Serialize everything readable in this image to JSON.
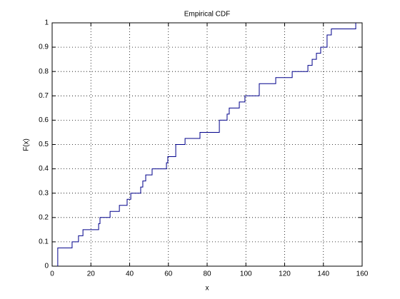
{
  "chart_data": {
    "type": "step",
    "title": "Empirical CDF",
    "x_label": "x",
    "y_label": "F(x)",
    "series": [
      {
        "color": "#00008b",
        "x": [
          2.9,
          2.9,
          10.3,
          13.6,
          15.9,
          24,
          24.7,
          29.9,
          34.7,
          38.7,
          40.6,
          45.7,
          46.8,
          48.3,
          51.6,
          59,
          59.7,
          63.8,
          68.6,
          76.3,
          86.3,
          90.3,
          91.4,
          96.6,
          99.5,
          106.9,
          115.4,
          123.9,
          132,
          134.2,
          136.4,
          138.6,
          141.9,
          144.1,
          156.7
        ],
        "values": [
          0,
          0.075,
          0.1,
          0.125,
          0.15,
          0.175,
          0.2,
          0.225,
          0.25,
          0.275,
          0.3,
          0.325,
          0.35,
          0.375,
          0.4,
          0.425,
          0.45,
          0.5,
          0.525,
          0.55,
          0.6,
          0.625,
          0.65,
          0.675,
          0.7,
          0.75,
          0.775,
          0.8,
          0.825,
          0.85,
          0.875,
          0.9,
          0.95,
          0.975,
          1
        ]
      }
    ],
    "xlim": [
      0,
      160
    ],
    "xticks": [
      0,
      20,
      40,
      60,
      80,
      100,
      120,
      140,
      160
    ],
    "ylim": [
      0,
      1
    ],
    "yticks": [
      0,
      0.1,
      0.2,
      0.3,
      0.4,
      0.5,
      0.6,
      0.7,
      0.8,
      0.9,
      1
    ],
    "grid": true
  }
}
